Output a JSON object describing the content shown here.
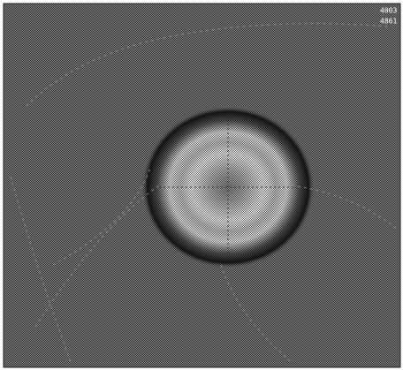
{
  "overlay_text": {
    "lines": [
      "4003",
      "4861"
    ]
  }
}
